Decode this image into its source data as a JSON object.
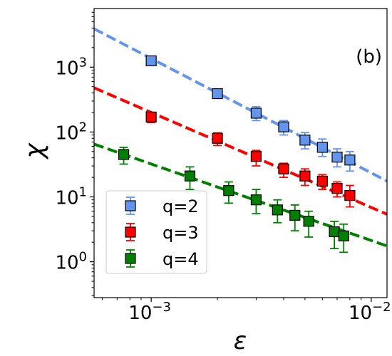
{
  "chart_data": {
    "type": "scatter",
    "panel_label": "(b)",
    "xlabel": "ε",
    "ylabel": "χ",
    "xscale": "log",
    "yscale": "log",
    "xlim": [
      0.00055,
      0.0118
    ],
    "ylim": [
      0.28,
      8000
    ],
    "x_ticks": [
      {
        "value": 0.001,
        "base": "10",
        "exp": "−3"
      },
      {
        "value": 0.01,
        "base": "10",
        "exp": "−2"
      }
    ],
    "y_ticks": [
      {
        "value": 1,
        "base": "10",
        "exp": "0"
      },
      {
        "value": 10,
        "base": "10",
        "exp": "1"
      },
      {
        "value": 100,
        "base": "10",
        "exp": "2"
      },
      {
        "value": 1000,
        "base": "10",
        "exp": "3"
      }
    ],
    "legend_position": "lower-left",
    "grid": false,
    "series": [
      {
        "name": "q=2",
        "color": "#6495ED",
        "x": [
          0.001,
          0.002,
          0.003,
          0.004,
          0.005,
          0.006,
          0.007,
          0.008
        ],
        "y": [
          1250,
          390,
          195,
          120,
          75,
          58,
          41,
          37
        ],
        "yerr_low": [
          1250,
          340,
          150,
          90,
          55,
          42,
          29,
          25
        ],
        "yerr_high": [
          1250,
          440,
          245,
          150,
          98,
          78,
          55,
          50
        ],
        "fit": {
          "x": [
            0.00055,
            0.0118
          ],
          "y": [
            3900,
            17.5
          ]
        }
      },
      {
        "name": "q=3",
        "color": "#FF0000",
        "x": [
          0.001,
          0.002,
          0.003,
          0.004,
          0.005,
          0.006,
          0.007,
          0.008
        ],
        "y": [
          170,
          80,
          42,
          27,
          21,
          17.5,
          13.5,
          10.5
        ],
        "yerr_low": [
          140,
          62,
          30,
          20,
          15,
          13,
          10,
          7
        ],
        "yerr_high": [
          190,
          97,
          52,
          33,
          27,
          22,
          17,
          15
        ],
        "fit": {
          "x": [
            0.00055,
            0.0118
          ],
          "y": [
            480,
            5.4
          ]
        }
      },
      {
        "name": "q=4",
        "color": "#008000",
        "x": [
          0.00075,
          0.0015,
          0.00225,
          0.003,
          0.00375,
          0.0045,
          0.0052,
          0.0068,
          0.0075
        ],
        "y": [
          45,
          21,
          12.5,
          9,
          6.3,
          5.2,
          4.2,
          2.9,
          2.5
        ],
        "yerr_low": [
          32,
          13,
          8,
          5.5,
          4,
          3,
          2.4,
          1.6,
          1.4
        ],
        "yerr_high": [
          58,
          29,
          17,
          13,
          9,
          7.5,
          6,
          4.2,
          3.8
        ],
        "fit": {
          "x": [
            0.00055,
            0.0118
          ],
          "y": [
            65,
            1.75
          ]
        }
      }
    ]
  }
}
